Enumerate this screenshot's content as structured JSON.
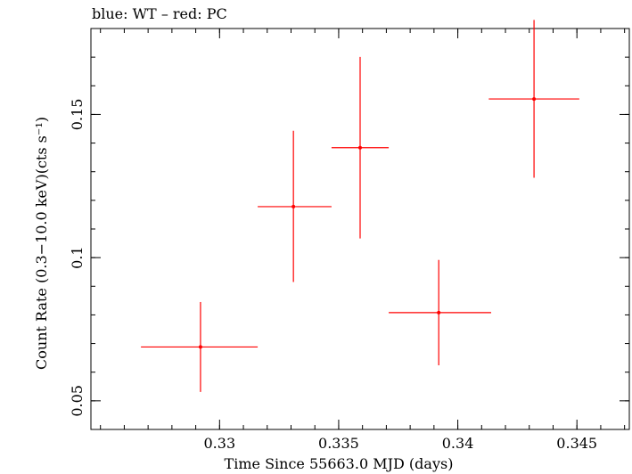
{
  "chart_data": {
    "type": "scatter",
    "title": "blue: WT – red: PC",
    "xlabel": "Time Since 55663.0 MJD (days)",
    "ylabel": "Count Rate (0.3−10.0 keV)(cts s⁻¹)",
    "xlim": [
      0.3246,
      0.3472
    ],
    "ylim": [
      0.04,
      0.18
    ],
    "xticks": [
      {
        "value": 0.33,
        "label": "0.33"
      },
      {
        "value": 0.335,
        "label": "0.335"
      },
      {
        "value": 0.34,
        "label": "0.34"
      },
      {
        "value": 0.345,
        "label": "0.345"
      }
    ],
    "yticks": [
      {
        "value": 0.05,
        "label": "0.05"
      },
      {
        "value": 0.1,
        "label": "0.1"
      },
      {
        "value": 0.15,
        "label": "0.15"
      }
    ],
    "grid": false,
    "series": [
      {
        "name": "PC",
        "color": "#ff0000",
        "points": [
          {
            "x": 0.3292,
            "y": 0.0688,
            "xerr": [
              0.0025,
              0.0024
            ],
            "yerr": [
              0.0157,
              0.0157
            ]
          },
          {
            "x": 0.3331,
            "y": 0.1178,
            "xerr": [
              0.0015,
              0.0016
            ],
            "yerr": [
              0.0263,
              0.0265
            ]
          },
          {
            "x": 0.3359,
            "y": 0.1384,
            "xerr": [
              0.0012,
              0.0012
            ],
            "yerr": [
              0.0317,
              0.0317
            ]
          },
          {
            "x": 0.3392,
            "y": 0.0808,
            "xerr": [
              0.0021,
              0.0022
            ],
            "yerr": [
              0.0184,
              0.0184
            ]
          },
          {
            "x": 0.3432,
            "y": 0.1554,
            "xerr": [
              0.0019,
              0.0019
            ],
            "yerr": [
              0.0275,
              0.0276
            ]
          }
        ]
      }
    ]
  }
}
